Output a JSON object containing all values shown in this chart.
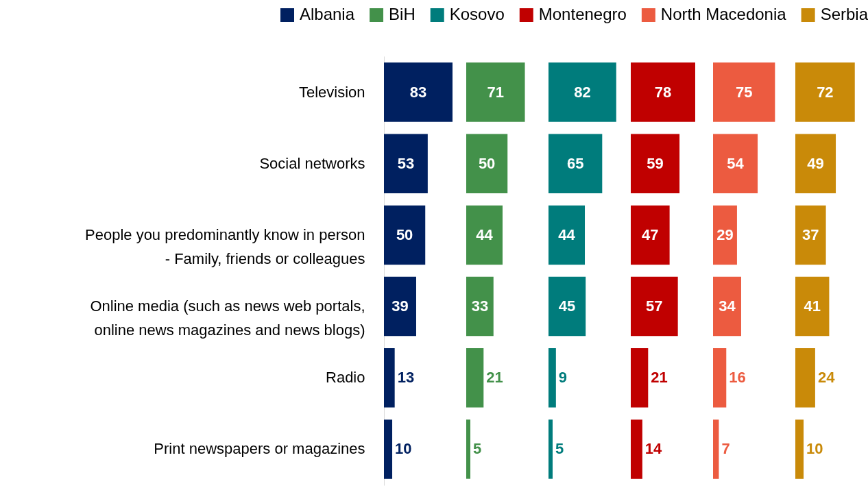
{
  "chart_data": [
    {
      "type": "bar",
      "orientation": "horizontal",
      "data_labels": true,
      "legend": "top",
      "tick_labels": "y",
      "categories": [
        "Television",
        "Social networks",
        "People you predominantly know in person - Family, friends or colleagues",
        "Online media (such as news web portals, online news magazines and news blogs)",
        "Radio",
        "Print newspapers or magazines"
      ],
      "series": [
        {
          "name": "Albania",
          "color": "#002060",
          "values": [
            83,
            53,
            50,
            39,
            13,
            10
          ]
        }
      ]
    },
    {
      "type": "bar",
      "orientation": "horizontal",
      "data_labels": true,
      "legend": "top",
      "tick_labels": false,
      "categories": [
        null,
        null,
        null,
        null,
        null,
        null
      ],
      "series": [
        {
          "name": "BiH",
          "color": "#43914a",
          "values": [
            71,
            50,
            44,
            33,
            21,
            5
          ]
        }
      ]
    },
    {
      "type": "bar",
      "orientation": "horizontal",
      "data_labels": true,
      "legend": "top",
      "tick_labels": false,
      "categories": [
        null,
        null,
        null,
        null,
        null,
        null
      ],
      "series": [
        {
          "name": "Kosovo",
          "color": "#007c7c",
          "values": [
            82,
            65,
            44,
            45,
            9,
            5
          ]
        }
      ]
    },
    {
      "type": "bar",
      "orientation": "horizontal",
      "data_labels": true,
      "legend": "top",
      "tick_labels": false,
      "categories": [
        null,
        null,
        null,
        null,
        null,
        null
      ],
      "series": [
        {
          "name": "Montenegro",
          "color": "#c00000",
          "values": [
            78,
            59,
            47,
            57,
            21,
            14
          ]
        }
      ]
    },
    {
      "type": "bar",
      "orientation": "horizontal",
      "data_labels": true,
      "legend": "top",
      "tick_labels": false,
      "categories": [
        null,
        null,
        null,
        null,
        null,
        null
      ],
      "series": [
        {
          "name": "North Macedonia",
          "color": "#ec5b40",
          "values": [
            75,
            54,
            29,
            34,
            16,
            7
          ]
        }
      ]
    },
    {
      "type": "bar",
      "orientation": "horizontal",
      "data_labels": true,
      "legend": "top",
      "tick_labels": false,
      "categories": [
        null,
        null,
        null,
        null,
        null,
        null
      ],
      "series": [
        {
          "name": "Serbia",
          "color": "#c98a09",
          "values": [
            72,
            49,
            37,
            41,
            24,
            10
          ]
        }
      ]
    }
  ]
}
